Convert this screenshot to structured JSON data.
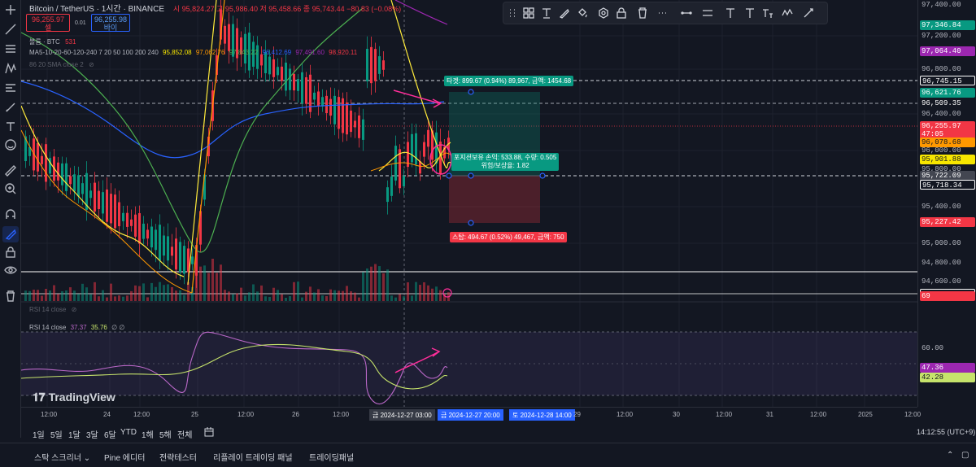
{
  "legend": {
    "title": "Bitcoin / TetherUS · 1시간 · BINANCE",
    "ohlc": "시 95,824.27 고 95,986.40 저 95,458.66 종 95,743.44 −80.83 (−0.08%)",
    "sell_price": "96,255.97",
    "sell_label": "셀",
    "spread": "0.01",
    "buy_price": "96,255.98",
    "buy_label": "바이",
    "volume_label": "볼륨 · BTC",
    "volume_value": "531",
    "ma_label": "MA5-10-20-60-120-240  7 20 50 100 200 240",
    "ma_values": [
      "95,852.08",
      "97,062.76",
      "97,843.22",
      "96,412.69",
      "97,491.60",
      "98,920.11"
    ],
    "sma_label": "86 20 SMA close 2",
    "rsi_hidden": "RSI 14 close",
    "rsi_label": "RSI 14 close",
    "rsi_v1": "37.37",
    "rsi_v2": "35.76",
    "rsi_v3": "∅ ∅"
  },
  "position": {
    "target": "타겟: 899.67 (0.94%) 89,967, 금액: 1454.68",
    "pnl": "포지션보유 손익: 533.88, 수량: 0.505",
    "ratio": "위험/보상율: 1.82",
    "stop": "스탑: 494.67 (0.52%) 49,467, 금액: 750"
  },
  "price_scale": {
    "labels": [
      {
        "t": "97,400.00",
        "y": 6
      },
      {
        "t": "97,200.00",
        "y": 44
      },
      {
        "t": "96,800.00",
        "y": 85
      },
      {
        "t": "96,400.00",
        "y": 140
      },
      {
        "t": "96,000.00",
        "y": 185
      },
      {
        "t": "95,800.00",
        "y": 208
      },
      {
        "t": "95,400.00",
        "y": 254
      },
      {
        "t": "95,000.00",
        "y": 299
      },
      {
        "t": "94,800.00",
        "y": 323
      },
      {
        "t": "94,600.00",
        "y": 346
      },
      {
        "t": "60.00",
        "y": 428
      }
    ],
    "tags": [
      {
        "t": "97,346.84",
        "y": 31,
        "bg": "#089981",
        "fg": "#ffffff"
      },
      {
        "t": "97,064.40",
        "y": 63,
        "bg": "#9c27b0",
        "fg": "#ffffff"
      },
      {
        "t": "96,745.15",
        "y": 99,
        "bg": "#131722",
        "fg": "#ffffff",
        "bd": "#ffffff"
      },
      {
        "t": "96,621.76",
        "y": 114,
        "bg": "#089981",
        "fg": "#ffffff"
      },
      {
        "t": "96,509.35",
        "y": 127,
        "bg": "#131722",
        "fg": "#ffffff"
      },
      {
        "t": "96,255.97",
        "y": 155,
        "bg": "#f23645",
        "fg": "#ffffff"
      },
      {
        "t": "47:05",
        "y": 165,
        "bg": "#f23645",
        "fg": "#ffffff"
      },
      {
        "t": "96,078.68",
        "y": 175,
        "bg": "#ff9800",
        "fg": "#131722"
      },
      {
        "t": "95,901.88",
        "y": 196,
        "bg": "#f7e600",
        "fg": "#131722"
      },
      {
        "t": "95,722.09",
        "y": 216,
        "bg": "#434651",
        "fg": "#ffffff"
      },
      {
        "t": "95,718.34",
        "y": 227,
        "bg": "#131722",
        "fg": "#ffffff",
        "bd": "#ffffff"
      },
      {
        "t": "95,227.42",
        "y": 273,
        "bg": "#f23645",
        "fg": "#ffffff"
      },
      {
        "t": "94,703.24",
        "y": 361,
        "bg": "#131722",
        "fg": "#ffffff",
        "bd": "#ffffff"
      },
      {
        "t": "69",
        "y": 364,
        "bg": "#f23645",
        "fg": "#ffffff"
      },
      {
        "t": "47.36",
        "y": 452,
        "bg": "#9c27b0",
        "fg": "#ffffff"
      },
      {
        "t": "42.28",
        "y": 464,
        "bg": "#c6e36b",
        "fg": "#131722"
      }
    ]
  },
  "time_axis": {
    "labels": [
      {
        "t": "12:00",
        "x": 58
      },
      {
        "t": "24",
        "x": 135
      },
      {
        "t": "12:00",
        "x": 172
      },
      {
        "t": "25",
        "x": 243
      },
      {
        "t": "12:00",
        "x": 300
      },
      {
        "t": "26",
        "x": 367
      },
      {
        "t": "12:00",
        "x": 417
      },
      {
        "t": "29",
        "x": 713
      },
      {
        "t": "12:00",
        "x": 766
      },
      {
        "t": "30",
        "x": 835
      },
      {
        "t": "12:00",
        "x": 888
      },
      {
        "t": "31",
        "x": 950
      },
      {
        "t": "12:00",
        "x": 1004
      },
      {
        "t": "2025",
        "x": 1063
      },
      {
        "t": "12:00",
        "x": 1120
      }
    ],
    "highlight1": "금  2024-12-27   03:00",
    "highlight2": "금  2024-12-27   20:00",
    "highlight3": "토  2024-12-28   14:00"
  },
  "periods": [
    "1일",
    "5일",
    "1달",
    "3달",
    "6달",
    "YTD",
    "1해",
    "5해",
    "전체"
  ],
  "clock": "14:12:55 (UTC+9)",
  "bottom_tabs": [
    "스탁 스크리너",
    "Pine 에디터",
    "전략테스터",
    "리플레이 트레이딩 패널",
    "트레이딩패널"
  ],
  "brand": "TradingView"
}
